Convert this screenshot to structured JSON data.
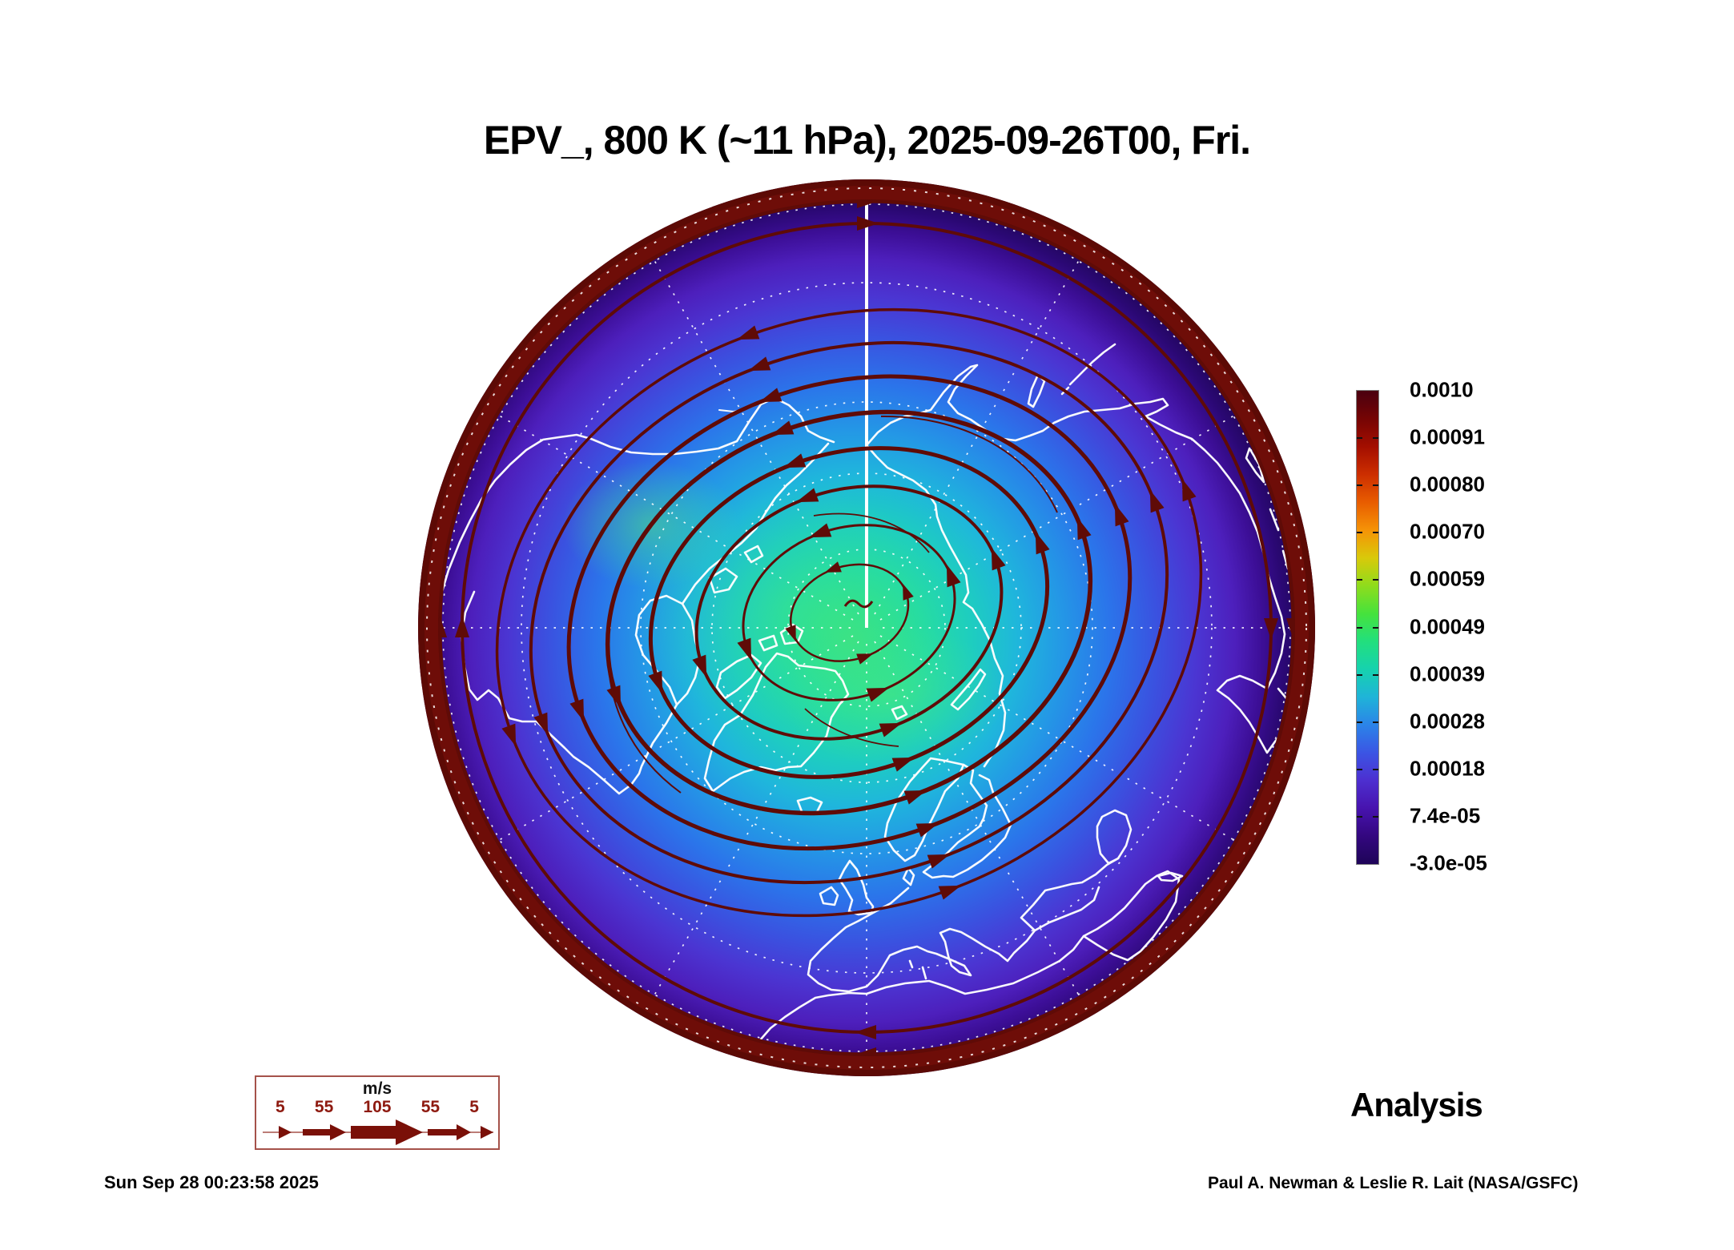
{
  "title": "EPV_, 800 K (~11 hPa), 2025-09-26T00, Fri.",
  "colorbar": {
    "labels": [
      "0.0010",
      "0.00091",
      "0.00080",
      "0.00070",
      "0.00059",
      "0.00049",
      "0.00039",
      "0.00028",
      "0.00018",
      "7.4e-05",
      "-3.0e-05"
    ],
    "gradient_top_to_bottom": [
      "#4a0010",
      "#750404",
      "#a30e00",
      "#cc2e00",
      "#e85c00",
      "#f59307",
      "#d9c90a",
      "#8fdc1c",
      "#46e23c",
      "#22df7d",
      "#16d2ae",
      "#1fb4d8",
      "#2b84e8",
      "#3b55e4",
      "#4d2fd0",
      "#4713ae",
      "#33077f",
      "#1e0458"
    ]
  },
  "wind_legend": {
    "unit": "m/s",
    "speeds": [
      "5",
      "55",
      "105",
      "55",
      "5"
    ]
  },
  "annotations": {
    "analysis_label": "Analysis",
    "timestamp": "Sun Sep 28 00:23:58 2025",
    "credit": "Paul A. Newman & Leslie R. Lait (NASA/GSFC)"
  },
  "map_colors": {
    "streamline": "#5f0b07",
    "rim_band": "#6e0d08",
    "coastline": "#ffffff",
    "graticule": "#ffffff",
    "pole_center_fill": "#3be183",
    "edge_fill": "#1d034e"
  },
  "chart_data": {
    "type": "heatmap",
    "title": "EPV_, 800 K (~11 hPa), 2025-09-26T00, Fri.",
    "field": "EPV (Ertel potential vorticity)",
    "level": "800 K (~11 hPa)",
    "valid_time": "2025-09-26T00",
    "view": "north polar view, 0E longitude at bottom, 180E at top (solid white meridian)",
    "colorbar_ticks": [
      0.001,
      0.00091,
      0.0008,
      0.0007,
      0.00059,
      0.00049,
      0.00039,
      0.00028,
      0.00018,
      7.4e-05,
      -3e-05
    ],
    "colorbar_range": [
      -3e-05,
      0.001
    ],
    "colorbar_orientation": "vertical, right of map",
    "field_pattern": "low/green EPV core near pole, increasing through cyan-blue-violet outward, dark-red maximum ring at the disk edge",
    "wind_overlay": "streamlines circling the pole counterclockwise (westerly vortex), near-edge streamlines clockwise (easterlies)",
    "wind_speed_scale_ms": [
      5,
      55,
      105,
      55,
      5
    ],
    "wind_speed_unit": "m/s",
    "overlays": [
      "wind streamlines with arrowheads",
      "white coastlines",
      "dashed white latitude/longitude graticule"
    ],
    "run_label": "Analysis"
  }
}
